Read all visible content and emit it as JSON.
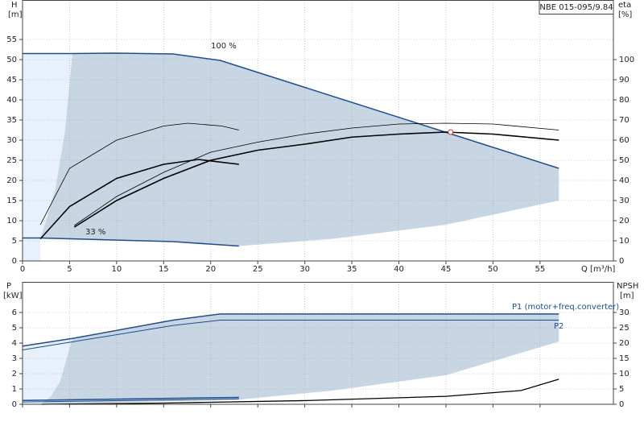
{
  "chart_data": [
    {
      "type": "line",
      "title": "NBE 015-095/9.84",
      "y_label": "H",
      "y_unit": "[m]",
      "y2_label": "eta",
      "y2_unit": "[%]",
      "x_label": "Q [m³/h]",
      "annotations": [
        "100 %",
        "33 %"
      ],
      "xlim": [
        0,
        62.8
      ],
      "xticks": [
        0,
        5,
        10,
        15,
        20,
        25,
        30,
        35,
        40,
        45,
        50,
        55
      ],
      "ylim": [
        0,
        64.8
      ],
      "yticks": [
        0,
        5,
        10,
        15,
        20,
        25,
        30,
        35,
        40,
        45,
        50,
        55
      ],
      "y2lim": [
        0,
        129.6
      ],
      "y2ticks": [
        0,
        10,
        20,
        30,
        40,
        50,
        60,
        70,
        80,
        90,
        100
      ],
      "grid": true,
      "areas": [
        {
          "color": "#e8f1fb",
          "x": [
            0,
            0,
            5.3,
            4.5,
            3.5,
            2.5,
            1.9,
            1.9
          ],
          "y": [
            0,
            51.5,
            51.5,
            32,
            18,
            10,
            5.7,
            0
          ]
        },
        {
          "color": "#c8d6e3",
          "x": [
            1.9,
            2.5,
            3.5,
            4.5,
            5.3,
            10,
            16,
            21,
            57,
            57,
            45,
            33,
            23,
            16,
            1.9
          ],
          "y": [
            5.7,
            10,
            18,
            32,
            51.5,
            51.6,
            51.4,
            49.8,
            23,
            15,
            9,
            5.5,
            3.7,
            4.8,
            5.7
          ]
        }
      ],
      "series": [
        {
          "color": "#1f4e8c",
          "line_width": 1.5,
          "x": [
            0,
            5.3,
            10,
            16,
            21,
            57
          ],
          "values": [
            51.5,
            51.5,
            51.6,
            51.4,
            49.8,
            23
          ]
        },
        {
          "color": "#1f4e8c",
          "line_width": 1.5,
          "x": [
            0,
            1.9,
            16,
            23
          ],
          "values": [
            5.7,
            5.7,
            4.8,
            3.7
          ]
        },
        {
          "color": "#000000",
          "line_width": 1.6,
          "axis": "y2",
          "x": [
            5.5,
            10,
            15,
            20,
            25,
            30,
            35,
            40,
            45,
            50,
            57
          ],
          "values": [
            16.8,
            30,
            41,
            50,
            55,
            58,
            61.5,
            63,
            64,
            63,
            60
          ]
        },
        {
          "color": "#000000",
          "line_width": 0.8,
          "axis": "y2",
          "x": [
            5.5,
            10,
            15,
            20,
            25,
            30,
            35,
            40,
            45,
            50,
            57
          ],
          "values": [
            17.6,
            32,
            44,
            54,
            59,
            63,
            66,
            68,
            68.4,
            68,
            65
          ]
        },
        {
          "color": "#000000",
          "line_width": 1.6,
          "axis": "y2",
          "x": [
            1.9,
            5,
            10,
            15,
            18.7,
            23
          ],
          "values": [
            11,
            27,
            41,
            48,
            50.4,
            48
          ]
        },
        {
          "color": "#000000",
          "line_width": 0.8,
          "axis": "y2",
          "x": [
            1.9,
            5,
            10,
            15,
            17.6,
            21.2,
            23
          ],
          "values": [
            18,
            46,
            60,
            67,
            68.4,
            67,
            65
          ]
        }
      ],
      "marker": {
        "x": 45.5,
        "y": 32,
        "color": "#e03030"
      }
    },
    {
      "type": "line",
      "y_label": "P",
      "y_unit": "[kW]",
      "y2_label": "NPSH",
      "y2_unit": "[m]",
      "xlim": [
        0,
        62.8
      ],
      "xticks": [
        0,
        5,
        10,
        15,
        20,
        25,
        30,
        35,
        40,
        45,
        50,
        55
      ],
      "ylim": [
        0,
        8
      ],
      "yticks": [
        0,
        1,
        2,
        3,
        4,
        5,
        6
      ],
      "y2lim": [
        0,
        40
      ],
      "y2ticks": [
        0,
        5,
        10,
        15,
        20,
        25,
        30
      ],
      "grid": true,
      "areas": [
        {
          "color": "#e8f1fb",
          "x": [
            0,
            0,
            5.3,
            4,
            3,
            1.9
          ],
          "y": [
            0,
            3.8,
            4.3,
            1.5,
            0.5,
            0
          ]
        },
        {
          "color": "#c8d6e3",
          "x": [
            1.9,
            3,
            4,
            5.3,
            16,
            21,
            57,
            57,
            45,
            33,
            23,
            1.9
          ],
          "y": [
            0,
            0.5,
            1.5,
            4.3,
            5.5,
            5.9,
            5.9,
            4.1,
            1.9,
            0.9,
            0.3,
            0
          ]
        }
      ],
      "series": [
        {
          "name": "P1 (motor+freq.converter)",
          "color": "#1f4e8c",
          "line_width": 1.5,
          "x": [
            0,
            5.3,
            16,
            21,
            57
          ],
          "values": [
            3.8,
            4.3,
            5.5,
            5.9,
            5.9
          ]
        },
        {
          "name": "P2",
          "color": "#1f4e8c",
          "line_width": 1.0,
          "x": [
            0,
            16,
            21,
            57
          ],
          "values": [
            3.55,
            5.15,
            5.5,
            5.5
          ]
        },
        {
          "color": "#1f4e8c",
          "line_width": 1.5,
          "x": [
            0,
            23
          ],
          "values": [
            0.25,
            0.45
          ]
        },
        {
          "color": "#1f4e8c",
          "line_width": 1.0,
          "x": [
            0,
            23
          ],
          "values": [
            0.15,
            0.35
          ]
        },
        {
          "color": "#000000",
          "line_width": 1.3,
          "axis": "y2",
          "x": [
            2,
            15,
            30,
            45,
            53,
            57
          ],
          "values": [
            0,
            0.4,
            1.2,
            2.6,
            4.5,
            8.2
          ]
        }
      ]
    }
  ]
}
